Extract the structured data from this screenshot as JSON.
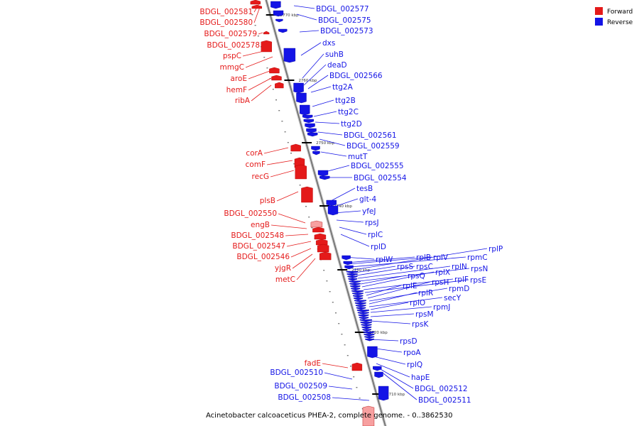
{
  "colors": {
    "forward": "#e41a1a",
    "forward_light": "#f7a0a0",
    "reverse": "#1414e6",
    "reverse_light": "#8f8ff5",
    "axis": "#888888"
  },
  "legend": {
    "forward": "Forward",
    "reverse": "Reverse"
  },
  "caption": "Acinetobacter calcoaceticus PHEA-2, complete genome. - 0..3862530",
  "ticks": [
    "2770 kbp",
    "2760 kbp",
    "2750 kbp",
    "2740 kbp",
    "2730 kbp",
    "2720 kbp",
    "2710 kbp"
  ],
  "forward_labels": [
    "BDGL_002581",
    "BDGL_002580",
    "BDGL_002579",
    "BDGL_002578",
    "pspC",
    "mmgC",
    "aroE",
    "hemF",
    "ribA",
    "corA",
    "comF",
    "recG",
    "plsB",
    "BDGL_002550",
    "engB",
    "BDGL_002548",
    "BDGL_002547",
    "BDGL_002546",
    "yjgR",
    "metC",
    "fadE"
  ],
  "reverse_labels_left": [
    "BDGL_002510",
    "BDGL_002509",
    "BDGL_002508"
  ],
  "reverse_labels": [
    "BDGL_002577",
    "BDGL_002575",
    "BDGL_002573",
    "dxs",
    "suhB",
    "deaD",
    "BDGL_002566",
    "ttg2A",
    "ttg2B",
    "ttg2C",
    "ttg2D",
    "BDGL_002561",
    "BDGL_002559",
    "mutT",
    "BDGL_002555",
    "BDGL_002554",
    "tesB",
    "glt-4",
    "yfeJ",
    "rpsJ",
    "rplC",
    "rplD",
    "rplW",
    "rplB",
    "rplV",
    "rpmC",
    "rplP",
    "rpsS",
    "rpsC",
    "rplN",
    "rpsN",
    "rpsQ",
    "rplX",
    "rplF",
    "rpsE",
    "rplE",
    "rpsH",
    "rpmD",
    "rplR",
    "secY",
    "rplO",
    "rpmJ",
    "rpsM",
    "rpsK",
    "rpsD",
    "rpoA",
    "rplQ",
    "hapE",
    "BDGL_002512",
    "BDGL_002511"
  ]
}
